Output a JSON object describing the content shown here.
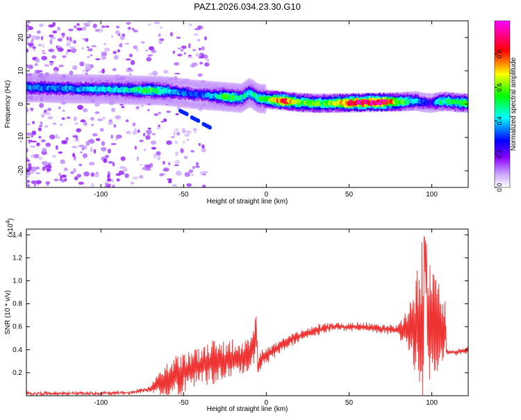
{
  "title": "PAZ1.2026.034.23.30.G10",
  "top_chart": {
    "xlabel": "Height of straight line (km)",
    "ylabel": "Frequency (Hz)",
    "colorbar_label": "Normalized spectral amplitude"
  },
  "bottom_chart": {
    "xlabel": "Height of straight line (km)",
    "ylabel": "SNR (10 * v/v)",
    "scale_prefix": "(x10",
    "scale_exp": "4",
    "scale_suffix": ")"
  },
  "chart_data": [
    {
      "type": "heatmap",
      "title": "PAZ1.2026.034.23.30.G10",
      "xlabel": "Height of straight line (km)",
      "ylabel": "Frequency (Hz)",
      "xlim": [
        -145,
        122
      ],
      "ylim": [
        -25,
        25
      ],
      "xticks": [
        -100,
        -50,
        0,
        50,
        100
      ],
      "yticks": [
        -20,
        -10,
        0,
        10,
        20
      ],
      "colorbar": {
        "label": "Normalized spectral amplitude",
        "range": [
          0,
          1
        ],
        "ticks": [
          0.0,
          0.2,
          0.4,
          0.6,
          0.8
        ],
        "colormap": [
          "#ffffff",
          "#c9a6ff",
          "#8a00ff",
          "#0000ff",
          "#00ffff",
          "#00ff00",
          "#ffff00",
          "#ff0000",
          "#ff00ff"
        ]
      },
      "ridge": {
        "x": [
          -145,
          -130,
          -115,
          -100,
          -90,
          -80,
          -70,
          -60,
          -55,
          -50,
          -45,
          -40,
          -35,
          -30,
          -25,
          -20,
          -15,
          -10,
          -5,
          0,
          10,
          20,
          30,
          40,
          50,
          60,
          70,
          80,
          85,
          90,
          95,
          100,
          105,
          110,
          115,
          122
        ],
        "freq": [
          5,
          4.8,
          4.6,
          4.5,
          4.4,
          4.2,
          4.1,
          3.9,
          3.6,
          3.3,
          3.0,
          2.8,
          2.6,
          2.4,
          2.2,
          2.0,
          1.8,
          3.5,
          1.8,
          1.5,
          1.0,
          0.5,
          0.3,
          0.3,
          0.4,
          0.5,
          0.6,
          0.7,
          0.8,
          1.0,
          0.5,
          0.3,
          0.8,
          0.8,
          0.5,
          0.3
        ],
        "amplitude": [
          0.35,
          0.35,
          0.35,
          0.4,
          0.4,
          0.45,
          0.55,
          0.45,
          0.35,
          0.35,
          0.3,
          0.3,
          0.35,
          0.4,
          0.55,
          0.55,
          0.45,
          0.45,
          0.5,
          0.55,
          0.85,
          0.6,
          0.55,
          0.6,
          0.85,
          0.9,
          0.9,
          0.6,
          0.5,
          0.4,
          0.3,
          0.25,
          0.45,
          0.5,
          0.5,
          0.55
        ]
      }
    },
    {
      "type": "line",
      "xlabel": "Height of straight line (km)",
      "ylabel": "SNR (10 * v/v)",
      "xlim": [
        -145,
        122
      ],
      "ylim": [
        0,
        1.45
      ],
      "y_scale_factor": 10000,
      "xticks": [
        -100,
        -50,
        0,
        50,
        100
      ],
      "yticks": [
        0.2,
        0.4,
        0.6,
        0.8,
        1.0,
        1.2,
        1.4
      ],
      "color": "#ee3333",
      "series": [
        {
          "x": [
            -145,
            -120,
            -100,
            -80,
            -70,
            -65,
            -60,
            -55,
            -50,
            -45,
            -40,
            -35,
            -30,
            -25,
            -20,
            -15,
            -10,
            -8,
            -6,
            -5,
            -4,
            0,
            10,
            20,
            30,
            40,
            50,
            60,
            70,
            80,
            85,
            90,
            95,
            100,
            105,
            108,
            109,
            110,
            115,
            122
          ],
          "y": [
            0.02,
            0.02,
            0.02,
            0.03,
            0.06,
            0.1,
            0.14,
            0.18,
            0.2,
            0.24,
            0.26,
            0.28,
            0.3,
            0.3,
            0.32,
            0.32,
            0.36,
            0.4,
            0.55,
            0.2,
            0.3,
            0.35,
            0.45,
            0.52,
            0.57,
            0.6,
            0.6,
            0.6,
            0.58,
            0.57,
            0.58,
            0.6,
            0.62,
            0.6,
            0.6,
            0.6,
            0.38,
            0.38,
            0.38,
            0.4
          ],
          "amplitude": [
            0.01,
            0.01,
            0.01,
            0.01,
            0.02,
            0.08,
            0.12,
            0.15,
            0.15,
            0.14,
            0.14,
            0.16,
            0.16,
            0.15,
            0.15,
            0.12,
            0.12,
            0.14,
            0.18,
            0.1,
            0.08,
            0.06,
            0.05,
            0.04,
            0.04,
            0.03,
            0.03,
            0.03,
            0.03,
            0.04,
            0.18,
            0.35,
            0.6,
            0.45,
            0.3,
            0.2,
            0.02,
            0.02,
            0.02,
            0.02
          ]
        }
      ]
    }
  ]
}
